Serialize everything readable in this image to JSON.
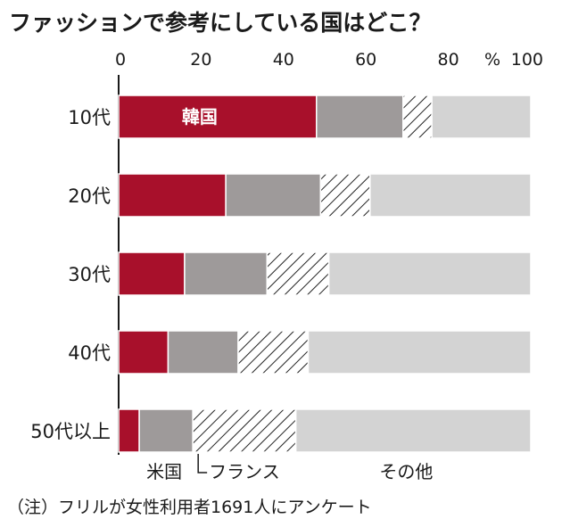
{
  "chart_data": {
    "type": "bar",
    "orientation": "horizontal",
    "stacked": true,
    "title": "ファッションで参考にしている国はどこ？",
    "unit": "%",
    "xlim": [
      0,
      100
    ],
    "xticks": [
      "0",
      "20",
      "40",
      "60",
      "80",
      "100"
    ],
    "categories": [
      "10代",
      "20代",
      "30代",
      "40代",
      "50代以上"
    ],
    "series": [
      {
        "name": "韓国",
        "color": "#a8102b",
        "pattern": "solid",
        "values": [
          48,
          26,
          16,
          12,
          5
        ]
      },
      {
        "name": "米国",
        "color": "#9e9a9a",
        "pattern": "solid",
        "values": [
          21,
          23,
          20,
          17,
          13
        ]
      },
      {
        "name": "フランス",
        "color": "#ffffff",
        "pattern": "hatch",
        "values": [
          7,
          12,
          15,
          17,
          25
        ]
      },
      {
        "name": "その他",
        "color": "#d3d3d3",
        "pattern": "solid",
        "values": [
          24,
          39,
          49,
          54,
          57
        ]
      }
    ],
    "inbar_label": "韓国",
    "legend_labels": [
      "米国",
      "フランス",
      "その他"
    ],
    "note": "（注）フリルが女性利用者1691人にアンケート"
  }
}
